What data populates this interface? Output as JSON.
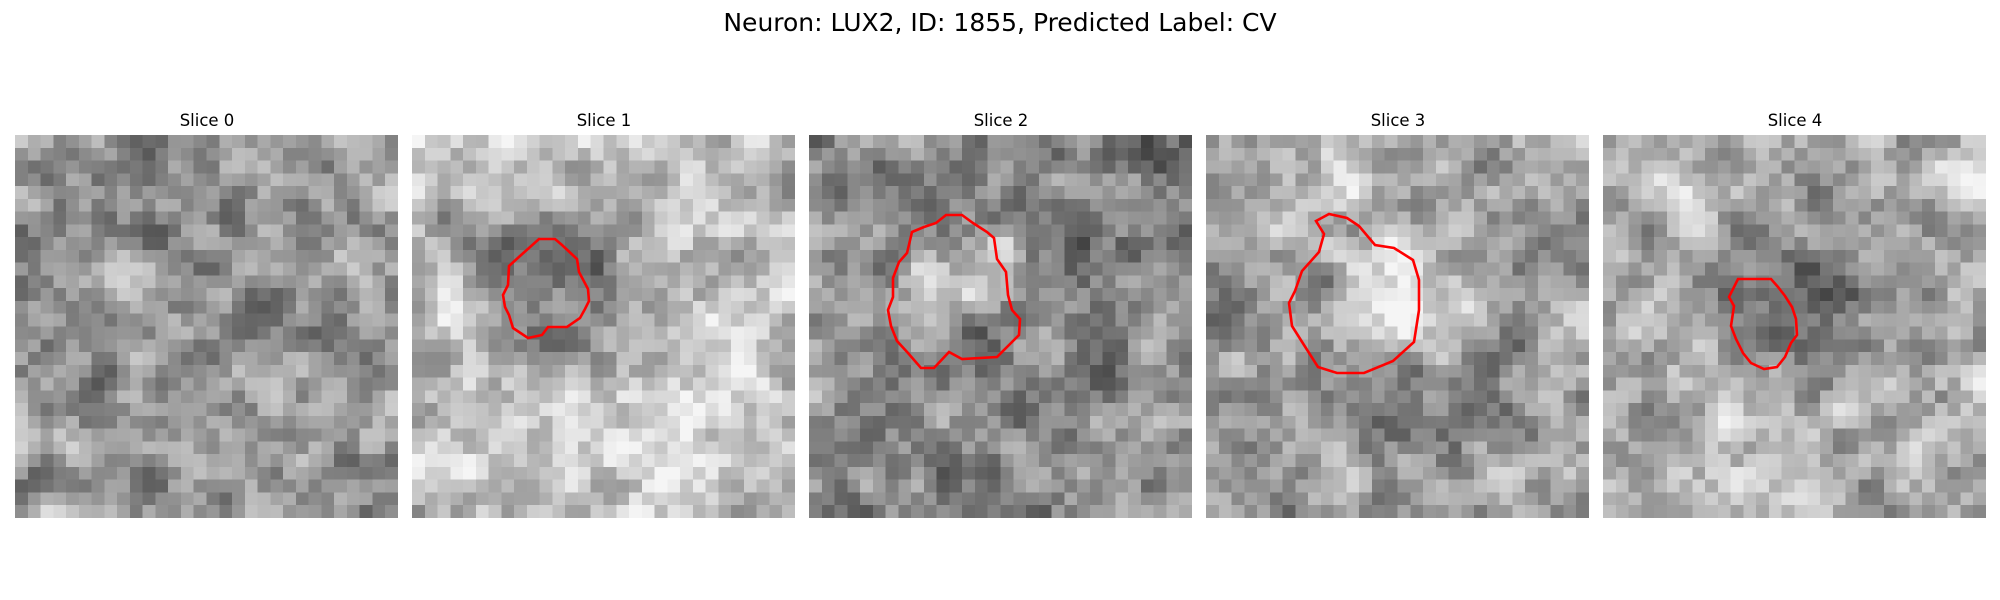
{
  "figure": {
    "title": "Neuron: LUX2, ID: 1855, Predicted Label: CV",
    "outline_color": "#ff0000"
  },
  "panels": [
    {
      "title": "Slice 0"
    },
    {
      "title": "Slice 1"
    },
    {
      "title": "Slice 2"
    },
    {
      "title": "Slice 3"
    },
    {
      "title": "Slice 4"
    }
  ]
}
